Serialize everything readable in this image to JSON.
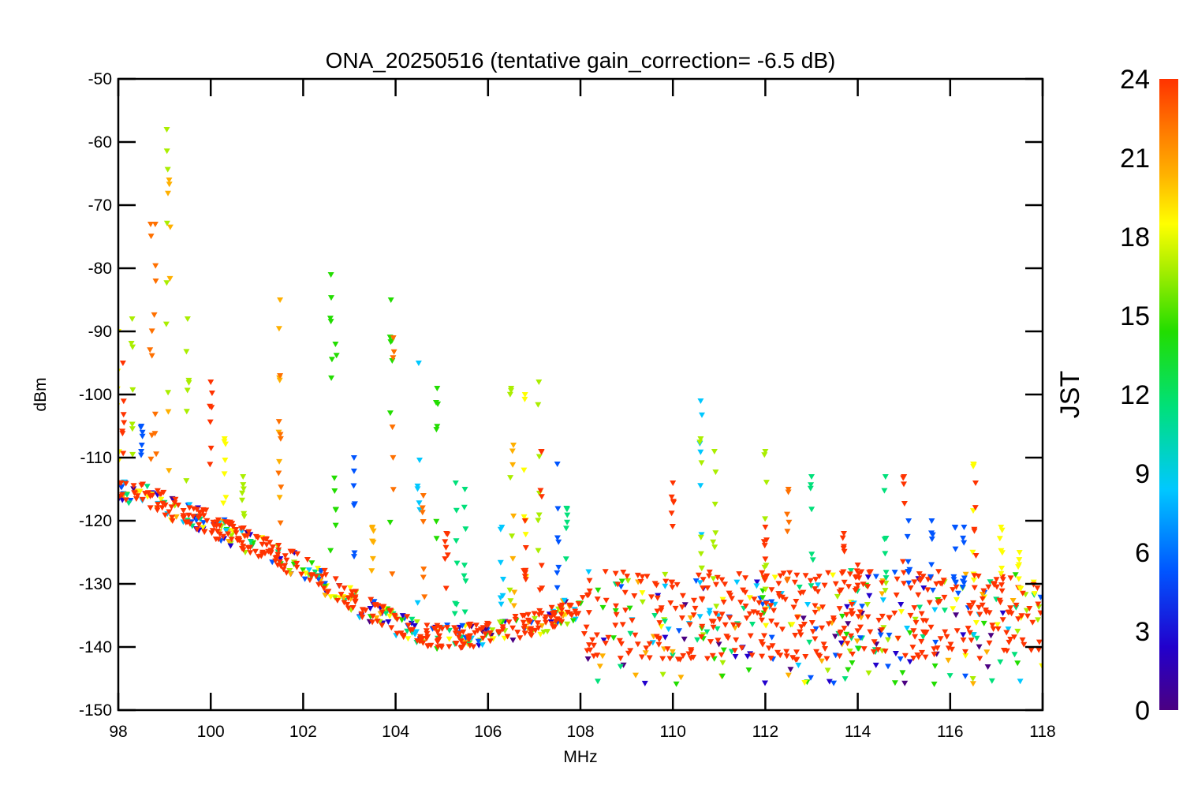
{
  "chart_data": {
    "type": "scatter",
    "title": "ONA_20250516 (tentative gain_correction= -6.5 dB)",
    "xlabel": "MHz",
    "ylabel": "dBm",
    "xlim": [
      98,
      118
    ],
    "ylim": [
      -150,
      -50
    ],
    "xticks": [
      98,
      100,
      102,
      104,
      106,
      108,
      110,
      112,
      114,
      116,
      118
    ],
    "yticks": [
      -50,
      -60,
      -70,
      -80,
      -90,
      -100,
      -110,
      -120,
      -130,
      -140,
      -150
    ],
    "grid": false,
    "marker": "down-triangle",
    "colorbar": {
      "label": "JST",
      "range": [
        0,
        24
      ],
      "ticks": [
        0,
        3,
        6,
        9,
        12,
        15,
        18,
        21,
        24
      ],
      "colormap": "rainbow",
      "colors": [
        "#4b0082",
        "#2200cc",
        "#0055ff",
        "#00c8ff",
        "#00e07a",
        "#22dd00",
        "#aaee00",
        "#ffff00",
        "#ffb000",
        "#ff7000",
        "#ff3300"
      ]
    },
    "noise_floor": {
      "x": [
        98,
        100,
        102,
        103,
        104,
        105,
        106,
        107,
        108,
        108.01,
        110,
        112,
        114,
        116,
        118
      ],
      "y": [
        -115,
        -121,
        -128,
        -133,
        -137,
        -139,
        -138.5,
        -137,
        -134,
        -135,
        -135,
        -135,
        -135,
        -135,
        -135
      ],
      "band_spread_dB_above_108": 14
    },
    "emissions": [
      {
        "f": 98.0,
        "top": -90,
        "jst": 17
      },
      {
        "f": 98.1,
        "top": -95,
        "jst": 23
      },
      {
        "f": 98.3,
        "top": -88,
        "jst": 14
      },
      {
        "f": 98.5,
        "top": -105,
        "jst": 5
      },
      {
        "f": 98.7,
        "top": -73,
        "jst": 21
      },
      {
        "f": 98.8,
        "top": -73,
        "jst": 22
      },
      {
        "f": 99.05,
        "top": -58,
        "jst": 14
      },
      {
        "f": 99.1,
        "top": -66,
        "jst": 20
      },
      {
        "f": 99.5,
        "top": -88,
        "jst": 14
      },
      {
        "f": 100.0,
        "top": -98,
        "jst": 23
      },
      {
        "f": 100.3,
        "top": -107,
        "jst": 17
      },
      {
        "f": 100.7,
        "top": -113,
        "jst": 15
      },
      {
        "f": 101.5,
        "top": -85,
        "jst": 19
      },
      {
        "f": 101.5,
        "top": -97,
        "jst": 21
      },
      {
        "f": 102.6,
        "top": -81,
        "jst": 11
      },
      {
        "f": 102.7,
        "top": -92,
        "jst": 12
      },
      {
        "f": 103.1,
        "top": -110,
        "jst": 4
      },
      {
        "f": 103.5,
        "top": -121,
        "jst": 18
      },
      {
        "f": 103.9,
        "top": -85,
        "jst": 13
      },
      {
        "f": 103.95,
        "top": -91,
        "jst": 21
      },
      {
        "f": 104.5,
        "top": -95,
        "jst": 8
      },
      {
        "f": 104.6,
        "top": -116,
        "jst": 22
      },
      {
        "f": 104.9,
        "top": -99,
        "jst": 12
      },
      {
        "f": 105.1,
        "top": -122,
        "jst": 23
      },
      {
        "f": 105.3,
        "top": -114,
        "jst": 10
      },
      {
        "f": 105.5,
        "top": -115,
        "jst": 10
      },
      {
        "f": 106.3,
        "top": -121,
        "jst": 7
      },
      {
        "f": 106.5,
        "top": -99,
        "jst": 14
      },
      {
        "f": 106.55,
        "top": -108,
        "jst": 20
      },
      {
        "f": 106.8,
        "top": -100,
        "jst": 17
      },
      {
        "f": 106.8,
        "top": -120,
        "jst": 23
      },
      {
        "f": 107.1,
        "top": -98,
        "jst": 14
      },
      {
        "f": 107.15,
        "top": -109,
        "jst": 23
      },
      {
        "f": 107.5,
        "top": -111,
        "jst": 4
      },
      {
        "f": 107.7,
        "top": -118,
        "jst": 10
      },
      {
        "f": 110.0,
        "top": -114,
        "jst": 23
      },
      {
        "f": 110.6,
        "top": -101,
        "jst": 8
      },
      {
        "f": 110.6,
        "top": -107,
        "jst": 15
      },
      {
        "f": 110.9,
        "top": -109,
        "jst": 15
      },
      {
        "f": 112.0,
        "top": -109,
        "jst": 15
      },
      {
        "f": 112.0,
        "top": -121,
        "jst": 23
      },
      {
        "f": 112.5,
        "top": -115,
        "jst": 21
      },
      {
        "f": 113.0,
        "top": -113,
        "jst": 10
      },
      {
        "f": 113.7,
        "top": -122,
        "jst": 23
      },
      {
        "f": 114.0,
        "top": -127,
        "jst": 23
      },
      {
        "f": 114.6,
        "top": -113,
        "jst": 9
      },
      {
        "f": 115.0,
        "top": -113,
        "jst": 23
      },
      {
        "f": 115.1,
        "top": -120,
        "jst": 5
      },
      {
        "f": 115.6,
        "top": -120,
        "jst": 5
      },
      {
        "f": 116.1,
        "top": -121,
        "jst": 5
      },
      {
        "f": 116.3,
        "top": -121,
        "jst": 5
      },
      {
        "f": 116.5,
        "top": -111,
        "jst": 17
      },
      {
        "f": 116.55,
        "top": -114,
        "jst": 23
      },
      {
        "f": 117.1,
        "top": -121,
        "jst": 17
      },
      {
        "f": 117.5,
        "top": -125,
        "jst": 17
      }
    ]
  }
}
